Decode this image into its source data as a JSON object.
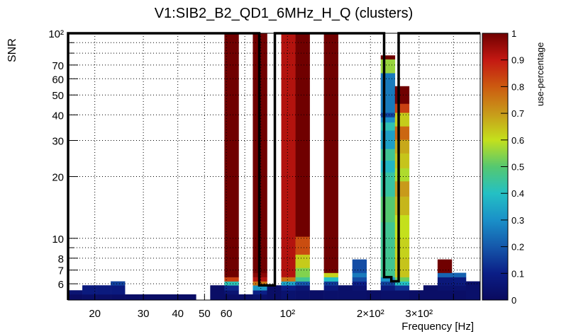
{
  "chart_data": {
    "type": "heatmap",
    "title": "V1:SIB2_B2_QD1_6MHz_H_Q (clusters)",
    "xlabel": "Frequency [Hz]",
    "ylabel": "SNR",
    "zlabel": "use-percentage",
    "xscale": "log",
    "yscale": "log",
    "xlim": [
      16,
      500
    ],
    "ylim": [
      5,
      100
    ],
    "zlim": [
      0,
      1
    ],
    "x_bins": 29,
    "grid": true,
    "x_ticks": [
      {
        "v": 20,
        "label": "20"
      },
      {
        "v": 30,
        "label": "30"
      },
      {
        "v": 40,
        "label": "40"
      },
      {
        "v": 50,
        "label": "50"
      },
      {
        "v": 60,
        "label": "60"
      },
      {
        "v": 100,
        "label": "10²"
      },
      {
        "v": 200,
        "label": "2×10²"
      },
      {
        "v": 300,
        "label": "3×10²"
      }
    ],
    "x_minor": [
      70,
      80,
      90,
      400
    ],
    "y_ticks": [
      {
        "v": 6,
        "label": "6"
      },
      {
        "v": 7,
        "label": "7"
      },
      {
        "v": 8,
        "label": "8"
      },
      {
        "v": 10,
        "label": "10"
      },
      {
        "v": 20,
        "label": "20"
      },
      {
        "v": 30,
        "label": "30"
      },
      {
        "v": 40,
        "label": "40"
      },
      {
        "v": 50,
        "label": "50"
      },
      {
        "v": 60,
        "label": "60"
      },
      {
        "v": 70,
        "label": "70"
      },
      {
        "v": 100,
        "label": "10²"
      }
    ],
    "y_minor": [
      9,
      80,
      90
    ],
    "z_ticks": [
      "0",
      "0.1",
      "0.2",
      "0.3",
      "0.4",
      "0.5",
      "0.6",
      "0.7",
      "0.8",
      "0.9",
      "1"
    ],
    "columns": [
      {
        "bin": 0,
        "cells": [
          [
            5,
            5.33,
            0.01
          ],
          [
            5.33,
            5.58,
            0.05
          ]
        ]
      },
      {
        "bin": 1,
        "cells": [
          [
            5,
            5.33,
            0.02
          ],
          [
            5.33,
            5.9,
            0.08
          ]
        ]
      },
      {
        "bin": 2,
        "cells": [
          [
            5,
            5.33,
            0.02
          ],
          [
            5.33,
            5.9,
            0.08
          ]
        ]
      },
      {
        "bin": 3,
        "cells": [
          [
            5,
            5.33,
            0.02
          ],
          [
            5.33,
            5.9,
            0.08
          ],
          [
            5.9,
            6.17,
            0.16
          ]
        ]
      },
      {
        "bin": 4,
        "cells": [
          [
            5,
            5.33,
            0.02
          ]
        ]
      },
      {
        "bin": 5,
        "cells": [
          [
            5,
            5.33,
            0.02
          ]
        ]
      },
      {
        "bin": 6,
        "cells": [
          [
            5,
            5.33,
            0.02
          ]
        ]
      },
      {
        "bin": 7,
        "cells": [
          [
            5,
            5.33,
            0.02
          ]
        ]
      },
      {
        "bin": 8,
        "cells": [
          [
            5,
            5.33,
            0.02
          ]
        ]
      },
      {
        "bin": 10,
        "cells": [
          [
            5,
            5.9,
            0.02
          ]
        ]
      },
      {
        "bin": 11,
        "cells": [
          [
            5,
            5.33,
            0.02
          ],
          [
            5.33,
            5.58,
            0.05
          ],
          [
            5.58,
            5.9,
            0.12
          ],
          [
            5.9,
            6.17,
            0.42
          ],
          [
            6.17,
            6.47,
            0.84
          ],
          [
            6.47,
            100,
            1.0
          ]
        ]
      },
      {
        "bin": 12,
        "cells": [
          [
            5,
            5.33,
            0.02
          ]
        ]
      },
      {
        "bin": 13,
        "cells": [
          [
            5,
            5.33,
            0.03
          ],
          [
            5.33,
            5.58,
            0.1
          ],
          [
            5.58,
            5.9,
            0.32
          ],
          [
            5.9,
            6.17,
            0.76
          ],
          [
            6.17,
            6.47,
            0.92
          ],
          [
            6.47,
            6.79,
            0.97
          ],
          [
            6.79,
            100,
            1.0
          ]
        ]
      },
      {
        "bin": 14,
        "cells": [
          [
            5,
            5.9,
            0.02
          ]
        ]
      },
      {
        "bin": 15,
        "cells": [
          [
            5,
            5.58,
            0.04
          ],
          [
            5.58,
            5.9,
            0.1
          ],
          [
            5.9,
            6.17,
            0.34
          ],
          [
            6.17,
            6.47,
            0.76
          ],
          [
            6.47,
            100,
            0.92
          ]
        ]
      },
      {
        "bin": 16,
        "cells": [
          [
            5,
            5.58,
            0.03
          ],
          [
            5.58,
            5.9,
            0.06
          ],
          [
            5.9,
            6.17,
            0.2
          ],
          [
            6.17,
            6.47,
            0.46
          ],
          [
            6.47,
            7.18,
            0.54
          ],
          [
            7.18,
            8.34,
            0.63
          ],
          [
            8.34,
            10.2,
            0.82
          ],
          [
            10.2,
            100,
            1.0
          ]
        ]
      },
      {
        "bin": 17,
        "cells": [
          [
            5,
            5.58,
            0.02
          ]
        ]
      },
      {
        "bin": 18,
        "cells": [
          [
            5,
            5.58,
            0.03
          ],
          [
            5.58,
            5.9,
            0.08
          ],
          [
            5.9,
            6.17,
            0.15
          ],
          [
            6.17,
            6.47,
            0.4
          ],
          [
            6.47,
            6.79,
            0.62
          ],
          [
            6.79,
            100,
            1.0
          ]
        ]
      },
      {
        "bin": 19,
        "cells": [
          [
            5,
            5.9,
            0.03
          ]
        ]
      },
      {
        "bin": 20,
        "cells": [
          [
            5,
            5.58,
            0.03
          ],
          [
            5.58,
            5.9,
            0.05
          ],
          [
            5.9,
            6.17,
            0.1
          ],
          [
            6.17,
            6.47,
            0.18
          ],
          [
            6.47,
            6.79,
            0.26
          ],
          [
            6.79,
            7.89,
            0.18
          ]
        ]
      },
      {
        "bin": 21,
        "cells": [
          [
            5,
            5.58,
            0.02
          ]
        ]
      },
      {
        "bin": 22,
        "cells": [
          [
            5,
            5.58,
            0.03
          ],
          [
            5.58,
            5.9,
            0.08
          ],
          [
            5.9,
            6.17,
            0.16
          ],
          [
            6.17,
            6.47,
            0.3
          ],
          [
            6.47,
            12,
            0.46
          ],
          [
            12,
            16,
            0.5
          ],
          [
            16,
            21,
            0.44
          ],
          [
            21,
            24,
            0.38
          ],
          [
            24,
            27.3,
            0.46
          ],
          [
            27.3,
            33.6,
            0.33
          ],
          [
            33.6,
            36.8,
            0.42
          ],
          [
            36.8,
            39,
            0.3
          ],
          [
            39,
            41,
            0.16
          ],
          [
            41,
            64,
            0.26
          ],
          [
            64,
            74.7,
            0.56
          ],
          [
            74.7,
            78,
            1.0
          ]
        ]
      },
      {
        "bin": 23,
        "cells": [
          [
            5,
            5.58,
            0.03
          ],
          [
            5.58,
            5.9,
            0.14
          ],
          [
            5.9,
            6.17,
            0.4
          ],
          [
            6.17,
            6.47,
            0.52
          ],
          [
            6.47,
            8,
            0.64
          ],
          [
            8,
            10,
            0.62
          ],
          [
            10,
            13,
            0.6
          ],
          [
            13,
            16,
            0.66
          ],
          [
            16,
            19,
            0.7
          ],
          [
            19,
            22,
            0.58
          ],
          [
            22,
            26,
            0.64
          ],
          [
            26,
            30.3,
            0.68
          ],
          [
            30.3,
            35.2,
            0.78
          ],
          [
            35.2,
            41,
            0.63
          ],
          [
            41,
            45.4,
            0.84
          ],
          [
            45.4,
            55.2,
            1.0
          ]
        ]
      },
      {
        "bin": 24,
        "cells": [
          [
            5,
            5.58,
            0.02
          ]
        ]
      },
      {
        "bin": 25,
        "cells": [
          [
            5,
            5.9,
            0.02
          ]
        ]
      },
      {
        "bin": 26,
        "cells": [
          [
            5,
            5.58,
            0.02
          ],
          [
            5.58,
            5.9,
            0.04
          ],
          [
            5.9,
            6.47,
            0.07
          ],
          [
            6.47,
            6.79,
            0.22
          ],
          [
            6.79,
            7.89,
            1.0
          ]
        ]
      },
      {
        "bin": 27,
        "cells": [
          [
            5,
            5.58,
            0.02
          ],
          [
            5.58,
            5.9,
            0.04
          ],
          [
            5.9,
            6.47,
            0.08
          ],
          [
            6.47,
            6.79,
            0.22
          ]
        ]
      },
      {
        "bin": 28,
        "cells": [
          [
            5,
            6.17,
            0.03
          ]
        ]
      }
    ],
    "outline": [
      [
        16,
        5
      ],
      [
        16,
        100
      ],
      [
        79,
        100
      ],
      [
        79,
        5.9
      ],
      [
        90,
        5.9
      ],
      [
        90,
        100
      ],
      [
        224,
        100
      ],
      [
        224,
        6.47
      ],
      [
        238,
        6.47
      ],
      [
        238,
        6.17
      ],
      [
        253,
        6.17
      ],
      [
        253,
        100
      ],
      [
        500,
        100
      ]
    ],
    "palette": [
      "#0a0a5e",
      "#0b1e86",
      "#1558ab",
      "#1a90c8",
      "#24c0c4",
      "#55c870",
      "#c4e01c",
      "#c89a1a",
      "#cc5a10",
      "#c41812",
      "#700000"
    ]
  }
}
